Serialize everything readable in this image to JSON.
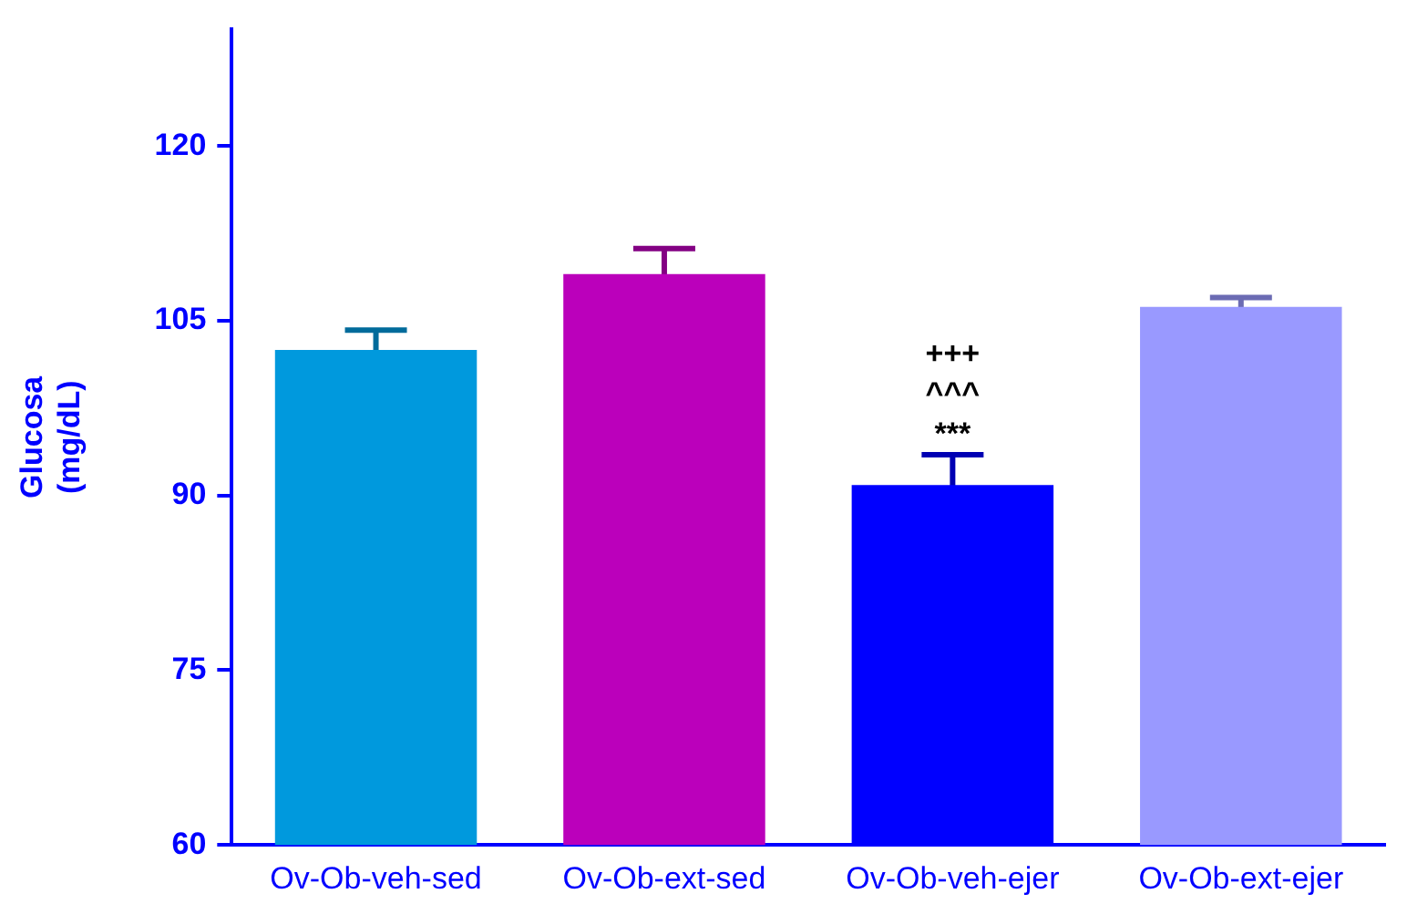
{
  "chart_data": {
    "type": "bar",
    "ylabel": "Glucosa (mg/dL)",
    "categories": [
      "Ov-Ob-veh-sed",
      "Ov-Ob-ext-sed",
      "Ov-Ob-veh-ejer",
      "Ov-Ob-ext-ejer"
    ],
    "values": [
      102.5,
      109.0,
      90.9,
      106.2
    ],
    "errors": [
      1.7,
      2.2,
      2.6,
      0.8
    ],
    "colors": [
      "#0099dd",
      "#bb00bb",
      "#0000ff",
      "#9999ff"
    ],
    "ylim": [
      60,
      130
    ],
    "yticks": [
      60,
      75,
      90,
      105,
      120
    ],
    "grid": false,
    "legend": false,
    "annotations": [
      {
        "text": "+++",
        "x": "Ov-Ob-veh-ejer",
        "y": 93.5
      },
      {
        "text": "^^^",
        "x": "Ov-Ob-veh-ejer",
        "y": 93.5
      },
      {
        "text": "***",
        "x": "Ov-Ob-veh-ejer",
        "y": 93.5
      }
    ]
  }
}
